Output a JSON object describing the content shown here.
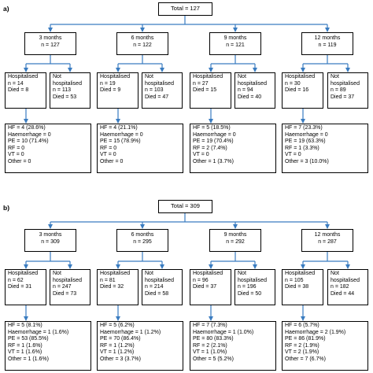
{
  "panels": [
    {
      "label": "a)",
      "total": "Total = 127",
      "periods": [
        {
          "title": "3 months",
          "n": "n = 127",
          "hosp": [
            "Hospitalised",
            "n = 14",
            "Died = 8"
          ],
          "nothosp": [
            "Not",
            "hospitalised",
            "n = 113",
            "Died = 53"
          ],
          "causes": [
            "HF = 4 (28.6%)",
            "Haemorrhage = 0",
            "PE = 10 (71.4%)",
            "RF = 0",
            "VT = 0",
            "Other = 0"
          ]
        },
        {
          "title": "6 months",
          "n": "n = 122",
          "hosp": [
            "Hospitalised",
            "n = 19",
            "Died = 9"
          ],
          "nothosp": [
            "Not",
            "hospitalised",
            "n = 103",
            "Died = 47"
          ],
          "causes": [
            "HF = 4 (21.1%)",
            "Haemorrhage = 0",
            "PE = 15 (78.9%)",
            "RF = 0",
            "VT = 0",
            "Other = 0"
          ]
        },
        {
          "title": "9 months",
          "n": "n = 121",
          "hosp": [
            "Hospitalised",
            "n = 27",
            "Died = 15"
          ],
          "nothosp": [
            "Not",
            "hospitalised",
            "n = 94",
            "Died = 40"
          ],
          "causes": [
            "HF = 5 (18.5%)",
            "Haemorrhage = 0",
            "PE = 19 (70.4%)",
            "RF = 2 (7.4%)",
            "VT = 0",
            "Other = 1 (3.7%)"
          ]
        },
        {
          "title": "12 months",
          "n": "n = 119",
          "hosp": [
            "Hospitalised",
            "n = 30",
            "Died = 16"
          ],
          "nothosp": [
            "Not",
            "hospitalised",
            "n = 89",
            "Died = 37"
          ],
          "causes": [
            "HF = 7 (23.3%)",
            "Haemorrhage = 0",
            "PE = 19 (63.3%)",
            "RF = 1 (3.3%)",
            "VT = 0",
            "Other = 3 (10.0%)"
          ]
        }
      ]
    },
    {
      "label": "b)",
      "total": "Total = 309",
      "periods": [
        {
          "title": "3 months",
          "n": "n = 309",
          "hosp": [
            "Hospitalised",
            "n = 62",
            "Died = 31"
          ],
          "nothosp": [
            "Not",
            "hospitalised",
            "n = 247",
            "Died = 73"
          ],
          "causes": [
            "HF = 5 (8.1%)",
            "Haemorrhage = 1 (1.6%)",
            "PE = 53 (85.5%)",
            "RF = 1 (1.6%)",
            "VT = 1 (1.6%)",
            "Other = 1 (1.6%)"
          ]
        },
        {
          "title": "6 months",
          "n": "n = 295",
          "hosp": [
            "Hospitalised",
            "n = 81",
            "Died = 32"
          ],
          "nothosp": [
            "Not",
            "hospitalised",
            "n = 214",
            "Died = 58"
          ],
          "causes": [
            "HF = 5 (6.2%)",
            "Haemorrhage = 1 (1.2%)",
            "PE = 70 (86.4%)",
            "RF = 1 (1.2%)",
            "VT = 1 (1.2%)",
            "Other = 3 (3.7%)"
          ]
        },
        {
          "title": "9 months",
          "n": "n = 292",
          "hosp": [
            "Hospitalised",
            "n = 96",
            "Died = 37"
          ],
          "nothosp": [
            "Not",
            "hospitalised",
            "n = 196",
            "Died = 50"
          ],
          "causes": [
            "HF = 7 (7.3%)",
            "Haemorrhage = 1 (1.0%)",
            "PE = 80 (83.3%)",
            "RF = 2 (2.1%)",
            "VT = 1 (1.0%)",
            "Other = 5 (5.2%)"
          ]
        },
        {
          "title": "12 months",
          "n": "n = 287",
          "hosp": [
            "Hospitalised",
            "n = 105",
            "Died = 38"
          ],
          "nothosp": [
            "Not",
            "hospitalised",
            "n = 182",
            "Died = 44"
          ],
          "causes": [
            "HF = 6 (5.7%)",
            "Haemorrhage = 2 (1.9%)",
            "PE = 86 (81.9%)",
            "RF = 2 (1.9%)",
            "VT = 2 (1.9%)",
            "Other = 7 (6.7%)"
          ]
        }
      ]
    }
  ],
  "colors": {
    "arrow": "#3a7cc0",
    "border": "#000000"
  }
}
